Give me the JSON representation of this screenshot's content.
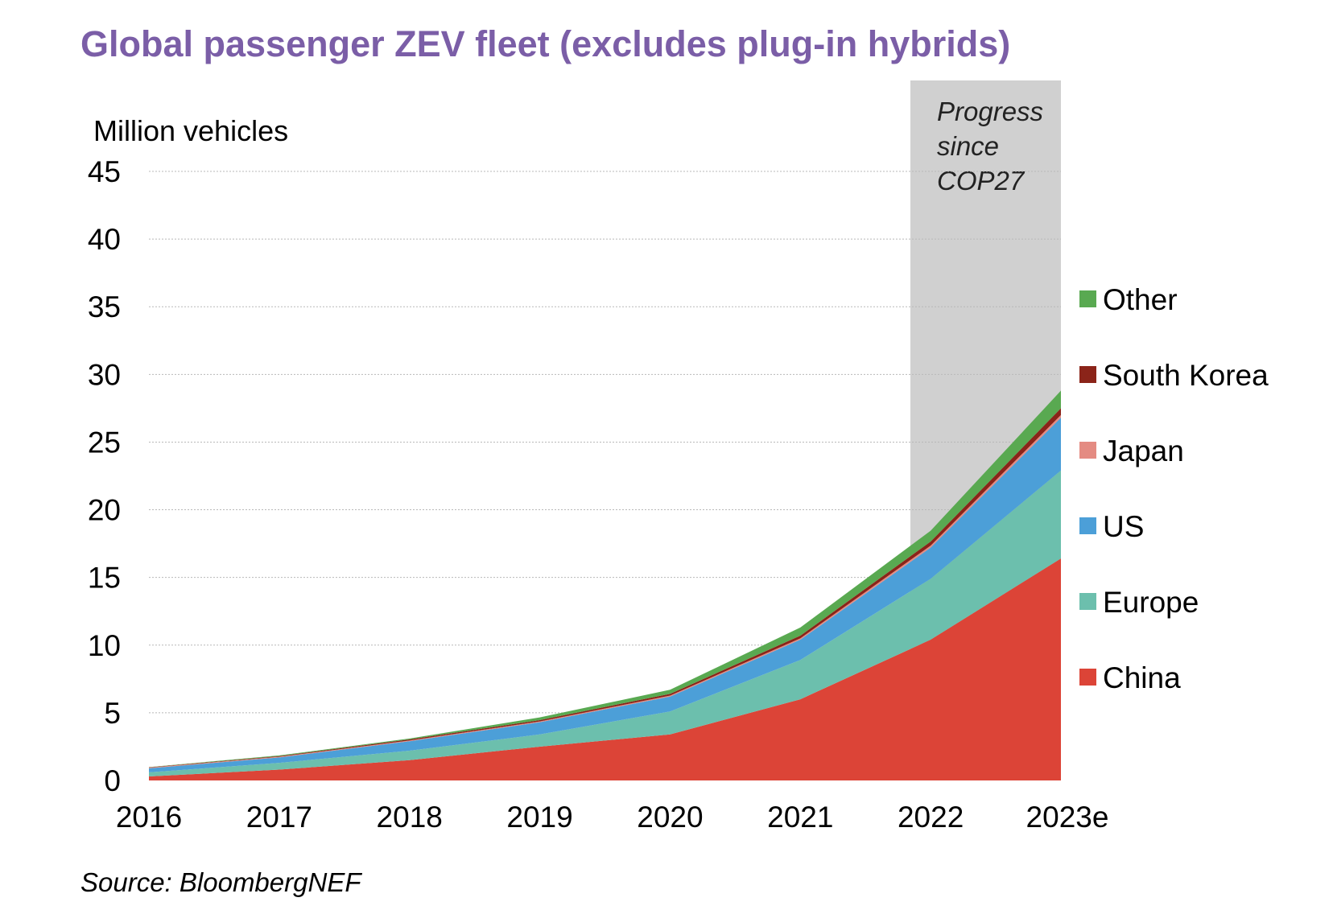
{
  "chart_data": {
    "type": "area",
    "stacked": true,
    "title": "Global passenger ZEV fleet (excludes plug-in hybrids)",
    "ylabel": "Million vehicles",
    "xlabel": "",
    "ylim": [
      0,
      45
    ],
    "yticks": [
      0,
      5,
      10,
      15,
      20,
      25,
      30,
      35,
      40,
      45
    ],
    "grid": true,
    "categories": [
      "2016",
      "2017",
      "2018",
      "2019",
      "2020",
      "2021",
      "2022",
      "2023e"
    ],
    "series": [
      {
        "name": "China",
        "color": "#dc4437",
        "values": [
          0.3,
          0.8,
          1.5,
          2.5,
          3.4,
          6.0,
          10.4,
          16.4
        ]
      },
      {
        "name": "Europe",
        "color": "#6cbfad",
        "values": [
          0.3,
          0.5,
          0.7,
          0.9,
          1.7,
          2.9,
          4.5,
          6.5
        ]
      },
      {
        "name": "US",
        "color": "#4c9fd8",
        "values": [
          0.3,
          0.4,
          0.7,
          0.9,
          1.1,
          1.5,
          2.3,
          3.9
        ]
      },
      {
        "name": "Japan",
        "color": "#e48b82",
        "values": [
          0.05,
          0.05,
          0.05,
          0.06,
          0.07,
          0.1,
          0.15,
          0.2
        ]
      },
      {
        "name": "South Korea",
        "color": "#8b2419",
        "values": [
          0.02,
          0.05,
          0.08,
          0.1,
          0.13,
          0.2,
          0.3,
          0.5
        ]
      },
      {
        "name": "Other",
        "color": "#59a951",
        "values": [
          0.02,
          0.05,
          0.07,
          0.2,
          0.3,
          0.6,
          0.8,
          1.3
        ]
      }
    ],
    "legend_position": "right",
    "annotation": {
      "lines": [
        "Progress",
        "since",
        "COP27"
      ],
      "band_color": "#d0d0d0"
    },
    "source": "Source: BloombergNEF"
  }
}
